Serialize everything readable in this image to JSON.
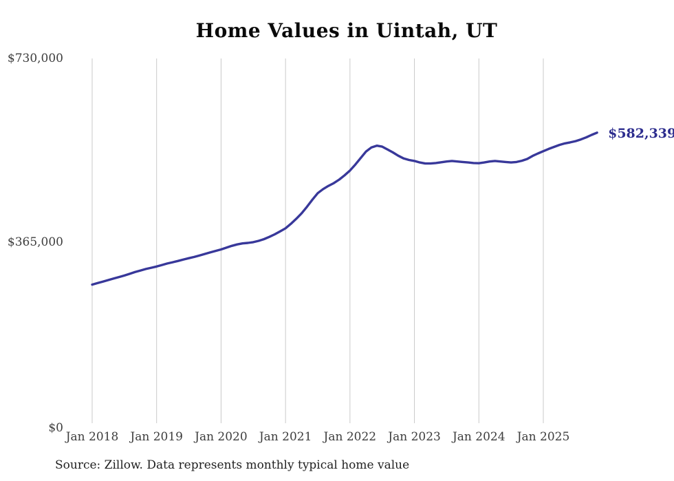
{
  "title": "Home Values in Uintah, UT",
  "end_label": "$582,339",
  "source": "Source: Zillow. Data represents monthly typical home value",
  "colors": {
    "line": "#38389a",
    "end_label": "#2d2d8e",
    "grid": "#c9c9c9",
    "axis_text": "#3d3d3d",
    "title_text": "#0a0a0a",
    "source_text": "#1f1f1f"
  },
  "chart_data": {
    "type": "line",
    "title": "Home Values in Uintah, UT",
    "series_name": "Monthly typical home value (USD)",
    "x_range": {
      "start": "2018-01",
      "end": "2025-11",
      "step": "monthly"
    },
    "values": [
      280000,
      283000,
      286000,
      289000,
      292000,
      295000,
      298000,
      301500,
      305000,
      308000,
      311000,
      313500,
      316000,
      319000,
      322000,
      324500,
      327000,
      330000,
      332500,
      335000,
      338000,
      341000,
      344000,
      347000,
      350000,
      353500,
      357000,
      360000,
      362000,
      363000,
      364500,
      367000,
      370500,
      375000,
      380000,
      386000,
      392000,
      401000,
      411000,
      422000,
      435000,
      449000,
      462000,
      470000,
      476500,
      482000,
      489000,
      497500,
      507000,
      519000,
      532000,
      545000,
      553000,
      556500,
      554500,
      549000,
      543000,
      536500,
      531000,
      528000,
      526000,
      523000,
      521000,
      521000,
      522000,
      523500,
      525000,
      526000,
      525000,
      524000,
      523000,
      522000,
      521500,
      523000,
      525000,
      526000,
      525000,
      524000,
      523000,
      524000,
      526500,
      530000,
      536000,
      541000,
      545500,
      550000,
      554000,
      558000,
      561000,
      563000,
      565500,
      569000,
      573000,
      578000,
      582339
    ],
    "x_tick_labels": [
      "Jan 2018",
      "Jan 2019",
      "Jan 2020",
      "Jan 2021",
      "Jan 2022",
      "Jan 2023",
      "Jan 2024",
      "Jan 2025"
    ],
    "y_ticks": [
      {
        "label": "$0",
        "value": 0
      },
      {
        "label": "$365,000",
        "value": 365000
      },
      {
        "label": "$730,000",
        "value": 730000
      }
    ],
    "ylim": [
      0,
      730000
    ],
    "grid": "vertical-only",
    "legend": "none",
    "end_annotation": {
      "label": "$582,339",
      "value": 582339,
      "x": "2025-11"
    }
  }
}
